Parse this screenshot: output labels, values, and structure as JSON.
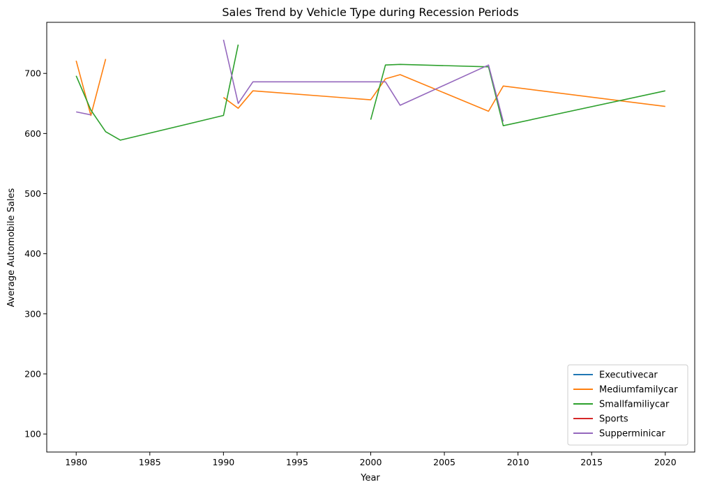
{
  "chart_data": {
    "type": "line",
    "title": "Sales Trend by Vehicle Type during Recession Periods",
    "xlabel": "Year",
    "ylabel": "Average Automobile Sales",
    "xlim": [
      1978,
      2022
    ],
    "ylim": [
      70,
      785
    ],
    "xticks": [
      1980,
      1985,
      1990,
      1995,
      2000,
      2005,
      2010,
      2015,
      2020
    ],
    "yticks": [
      100,
      200,
      300,
      400,
      500,
      600,
      700
    ],
    "grid": false,
    "legend_position": "lower-right",
    "series": [
      {
        "name": "Executivecar",
        "color": "#1f77b4",
        "segments": []
      },
      {
        "name": "Mediumfamilycar",
        "color": "#ff7f0e",
        "segments": [
          [
            [
              1980,
              721
            ],
            [
              1981,
              630
            ],
            [
              1982,
              724
            ]
          ],
          [
            [
              1990,
              660
            ],
            [
              1991,
              642
            ],
            [
              1992,
              671
            ],
            [
              2000,
              656
            ],
            [
              2001,
              691
            ],
            [
              2002,
              698
            ],
            [
              2008,
              637
            ],
            [
              2009,
              679
            ],
            [
              2020,
              645
            ]
          ]
        ]
      },
      {
        "name": "Smallfamiliycar",
        "color": "#2ca02c",
        "segments": [
          [
            [
              1980,
              696
            ],
            [
              1981,
              639
            ],
            [
              1982,
              603
            ],
            [
              1983,
              589
            ],
            [
              1990,
              630
            ],
            [
              1991,
              748
            ]
          ],
          [
            [
              2000,
              623
            ],
            [
              2001,
              714
            ],
            [
              2002,
              715
            ],
            [
              2008,
              711
            ],
            [
              2009,
              613
            ],
            [
              2020,
              671
            ]
          ]
        ]
      },
      {
        "name": "Sports",
        "color": "#d62728",
        "segments": []
      },
      {
        "name": "Supperminicar",
        "color": "#9467bd",
        "segments": [
          [
            [
              1980,
              636
            ],
            [
              1981,
              631
            ]
          ],
          [
            [
              1990,
              756
            ],
            [
              1991,
              650
            ],
            [
              1992,
              686
            ],
            [
              2001,
              686
            ],
            [
              2002,
              647
            ],
            [
              2008,
              714
            ],
            [
              2009,
              620
            ]
          ]
        ]
      }
    ]
  }
}
